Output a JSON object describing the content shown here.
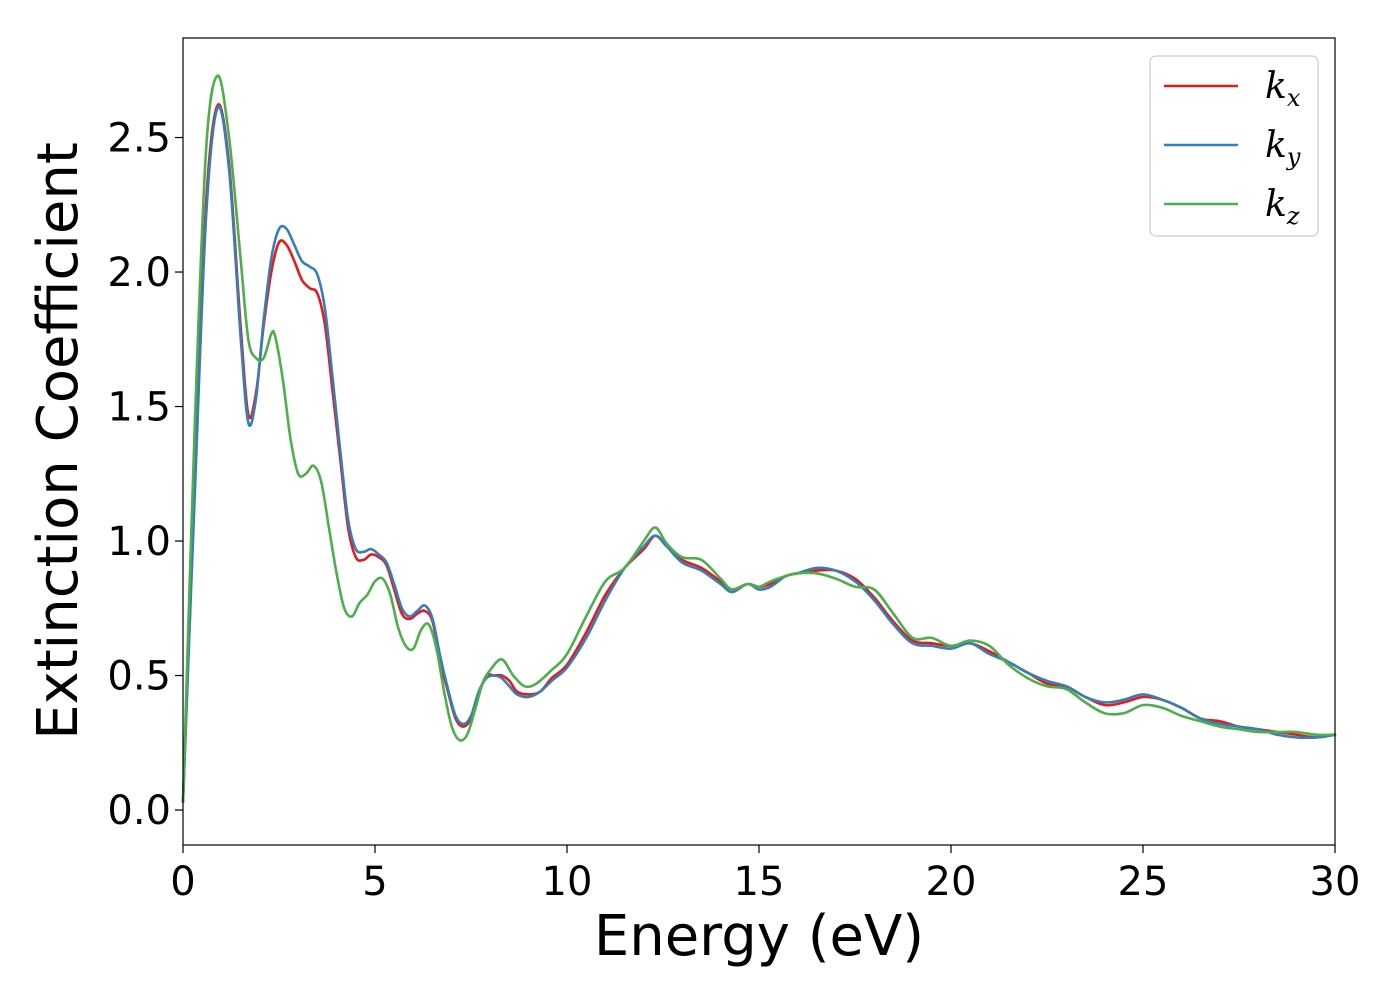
{
  "chart_data": {
    "type": "line",
    "xlabel": "Energy (eV)",
    "ylabel": "Extinction Coefficient",
    "xlim": [
      0,
      30
    ],
    "ylim": [
      -0.13,
      2.87
    ],
    "xticks": [
      0,
      5,
      10,
      15,
      20,
      25,
      30
    ],
    "xtick_labels": [
      "0",
      "5",
      "10",
      "15",
      "20",
      "25",
      "30"
    ],
    "yticks": [
      0.0,
      0.5,
      1.0,
      1.5,
      2.0,
      2.5
    ],
    "ytick_labels": [
      "0.0",
      "0.5",
      "1.0",
      "1.5",
      "2.0",
      "2.5"
    ],
    "grid": false,
    "legend_position": "top-right",
    "series": [
      {
        "name": "k_x",
        "label_main": "k",
        "label_sub": "x",
        "color": "#e41a1c",
        "points": [
          [
            0,
            0.03
          ],
          [
            0.3,
            1.2
          ],
          [
            0.6,
            2.25
          ],
          [
            0.9,
            2.62
          ],
          [
            1.2,
            2.4
          ],
          [
            1.5,
            1.8
          ],
          [
            1.7,
            1.47
          ],
          [
            1.9,
            1.55
          ],
          [
            2.1,
            1.8
          ],
          [
            2.3,
            2.0
          ],
          [
            2.5,
            2.11
          ],
          [
            2.7,
            2.1
          ],
          [
            2.9,
            2.04
          ],
          [
            3.1,
            1.97
          ],
          [
            3.3,
            1.94
          ],
          [
            3.5,
            1.92
          ],
          [
            3.7,
            1.8
          ],
          [
            3.9,
            1.55
          ],
          [
            4.1,
            1.3
          ],
          [
            4.3,
            1.05
          ],
          [
            4.5,
            0.94
          ],
          [
            4.7,
            0.93
          ],
          [
            4.9,
            0.95
          ],
          [
            5.1,
            0.94
          ],
          [
            5.3,
            0.91
          ],
          [
            5.5,
            0.82
          ],
          [
            5.7,
            0.73
          ],
          [
            5.9,
            0.71
          ],
          [
            6.1,
            0.73
          ],
          [
            6.3,
            0.74
          ],
          [
            6.5,
            0.7
          ],
          [
            6.7,
            0.55
          ],
          [
            6.9,
            0.44
          ],
          [
            7.1,
            0.34
          ],
          [
            7.3,
            0.31
          ],
          [
            7.5,
            0.34
          ],
          [
            7.7,
            0.43
          ],
          [
            7.9,
            0.5
          ],
          [
            8.1,
            0.5
          ],
          [
            8.3,
            0.5
          ],
          [
            8.5,
            0.48
          ],
          [
            8.7,
            0.44
          ],
          [
            9.0,
            0.43
          ],
          [
            9.3,
            0.44
          ],
          [
            9.6,
            0.49
          ],
          [
            10.0,
            0.54
          ],
          [
            10.5,
            0.66
          ],
          [
            11.0,
            0.8
          ],
          [
            11.5,
            0.9
          ],
          [
            12.0,
            0.97
          ],
          [
            12.3,
            1.02
          ],
          [
            12.6,
            0.98
          ],
          [
            13.0,
            0.93
          ],
          [
            13.5,
            0.9
          ],
          [
            14.0,
            0.85
          ],
          [
            14.3,
            0.82
          ],
          [
            14.7,
            0.84
          ],
          [
            15.0,
            0.83
          ],
          [
            15.3,
            0.84
          ],
          [
            15.7,
            0.87
          ],
          [
            16.0,
            0.88
          ],
          [
            16.5,
            0.89
          ],
          [
            17.0,
            0.89
          ],
          [
            17.5,
            0.86
          ],
          [
            18.0,
            0.79
          ],
          [
            18.5,
            0.7
          ],
          [
            19.0,
            0.63
          ],
          [
            19.5,
            0.62
          ],
          [
            20.0,
            0.61
          ],
          [
            20.5,
            0.62
          ],
          [
            21.0,
            0.59
          ],
          [
            21.5,
            0.55
          ],
          [
            22.0,
            0.51
          ],
          [
            22.5,
            0.47
          ],
          [
            23.0,
            0.46
          ],
          [
            23.5,
            0.42
          ],
          [
            24.0,
            0.39
          ],
          [
            24.5,
            0.4
          ],
          [
            25.0,
            0.42
          ],
          [
            25.5,
            0.41
          ],
          [
            26.0,
            0.38
          ],
          [
            26.5,
            0.34
          ],
          [
            27.0,
            0.33
          ],
          [
            27.5,
            0.31
          ],
          [
            28.0,
            0.3
          ],
          [
            28.5,
            0.29
          ],
          [
            29.0,
            0.28
          ],
          [
            29.5,
            0.27
          ],
          [
            30.0,
            0.28
          ]
        ]
      },
      {
        "name": "k_y",
        "label_main": "k",
        "label_sub": "y",
        "color": "#377eb8",
        "points": [
          [
            0,
            0.03
          ],
          [
            0.3,
            1.15
          ],
          [
            0.6,
            2.2
          ],
          [
            0.9,
            2.61
          ],
          [
            1.2,
            2.38
          ],
          [
            1.5,
            1.76
          ],
          [
            1.7,
            1.44
          ],
          [
            1.9,
            1.53
          ],
          [
            2.1,
            1.82
          ],
          [
            2.3,
            2.05
          ],
          [
            2.5,
            2.16
          ],
          [
            2.7,
            2.16
          ],
          [
            2.9,
            2.1
          ],
          [
            3.1,
            2.04
          ],
          [
            3.3,
            2.02
          ],
          [
            3.5,
            1.99
          ],
          [
            3.7,
            1.86
          ],
          [
            3.9,
            1.6
          ],
          [
            4.1,
            1.33
          ],
          [
            4.3,
            1.08
          ],
          [
            4.5,
            0.97
          ],
          [
            4.7,
            0.96
          ],
          [
            4.9,
            0.97
          ],
          [
            5.1,
            0.95
          ],
          [
            5.3,
            0.92
          ],
          [
            5.5,
            0.84
          ],
          [
            5.7,
            0.75
          ],
          [
            5.9,
            0.72
          ],
          [
            6.1,
            0.74
          ],
          [
            6.3,
            0.76
          ],
          [
            6.5,
            0.71
          ],
          [
            6.7,
            0.57
          ],
          [
            6.9,
            0.45
          ],
          [
            7.1,
            0.35
          ],
          [
            7.3,
            0.32
          ],
          [
            7.5,
            0.35
          ],
          [
            7.7,
            0.44
          ],
          [
            7.9,
            0.49
          ],
          [
            8.1,
            0.5
          ],
          [
            8.3,
            0.49
          ],
          [
            8.5,
            0.46
          ],
          [
            8.7,
            0.43
          ],
          [
            9.0,
            0.42
          ],
          [
            9.3,
            0.44
          ],
          [
            9.6,
            0.48
          ],
          [
            10.0,
            0.53
          ],
          [
            10.5,
            0.64
          ],
          [
            11.0,
            0.78
          ],
          [
            11.5,
            0.9
          ],
          [
            12.0,
            0.98
          ],
          [
            12.3,
            1.02
          ],
          [
            12.6,
            0.98
          ],
          [
            13.0,
            0.92
          ],
          [
            13.5,
            0.89
          ],
          [
            14.0,
            0.84
          ],
          [
            14.3,
            0.81
          ],
          [
            14.7,
            0.84
          ],
          [
            15.0,
            0.82
          ],
          [
            15.3,
            0.83
          ],
          [
            15.7,
            0.87
          ],
          [
            16.0,
            0.88
          ],
          [
            16.5,
            0.9
          ],
          [
            17.0,
            0.89
          ],
          [
            17.5,
            0.85
          ],
          [
            18.0,
            0.78
          ],
          [
            18.5,
            0.69
          ],
          [
            19.0,
            0.62
          ],
          [
            19.5,
            0.61
          ],
          [
            20.0,
            0.6
          ],
          [
            20.5,
            0.62
          ],
          [
            21.0,
            0.58
          ],
          [
            21.5,
            0.55
          ],
          [
            22.0,
            0.51
          ],
          [
            22.5,
            0.48
          ],
          [
            23.0,
            0.46
          ],
          [
            23.5,
            0.42
          ],
          [
            24.0,
            0.4
          ],
          [
            24.5,
            0.41
          ],
          [
            25.0,
            0.43
          ],
          [
            25.5,
            0.41
          ],
          [
            26.0,
            0.38
          ],
          [
            26.5,
            0.34
          ],
          [
            27.0,
            0.32
          ],
          [
            27.5,
            0.31
          ],
          [
            28.0,
            0.3
          ],
          [
            28.5,
            0.28
          ],
          [
            29.0,
            0.27
          ],
          [
            29.5,
            0.27
          ],
          [
            30.0,
            0.28
          ]
        ]
      },
      {
        "name": "k_z",
        "label_main": "k",
        "label_sub": "z",
        "color": "#4daf4a",
        "points": [
          [
            0,
            0.03
          ],
          [
            0.3,
            1.4
          ],
          [
            0.6,
            2.45
          ],
          [
            0.9,
            2.73
          ],
          [
            1.2,
            2.5
          ],
          [
            1.5,
            2.05
          ],
          [
            1.7,
            1.75
          ],
          [
            1.9,
            1.68
          ],
          [
            2.1,
            1.68
          ],
          [
            2.3,
            1.77
          ],
          [
            2.4,
            1.76
          ],
          [
            2.6,
            1.6
          ],
          [
            2.8,
            1.38
          ],
          [
            3.0,
            1.25
          ],
          [
            3.2,
            1.25
          ],
          [
            3.4,
            1.28
          ],
          [
            3.6,
            1.22
          ],
          [
            3.8,
            1.05
          ],
          [
            4.0,
            0.88
          ],
          [
            4.2,
            0.75
          ],
          [
            4.4,
            0.72
          ],
          [
            4.6,
            0.77
          ],
          [
            4.8,
            0.8
          ],
          [
            5.0,
            0.85
          ],
          [
            5.2,
            0.86
          ],
          [
            5.4,
            0.8
          ],
          [
            5.6,
            0.68
          ],
          [
            5.8,
            0.61
          ],
          [
            6.0,
            0.6
          ],
          [
            6.2,
            0.67
          ],
          [
            6.4,
            0.69
          ],
          [
            6.6,
            0.6
          ],
          [
            6.8,
            0.44
          ],
          [
            7.0,
            0.31
          ],
          [
            7.2,
            0.26
          ],
          [
            7.4,
            0.28
          ],
          [
            7.6,
            0.37
          ],
          [
            7.8,
            0.47
          ],
          [
            8.0,
            0.52
          ],
          [
            8.3,
            0.56
          ],
          [
            8.6,
            0.5
          ],
          [
            8.9,
            0.46
          ],
          [
            9.2,
            0.47
          ],
          [
            9.6,
            0.52
          ],
          [
            10.0,
            0.58
          ],
          [
            10.5,
            0.72
          ],
          [
            11.0,
            0.85
          ],
          [
            11.5,
            0.9
          ],
          [
            12.0,
            1.0
          ],
          [
            12.3,
            1.05
          ],
          [
            12.6,
            0.99
          ],
          [
            13.0,
            0.94
          ],
          [
            13.5,
            0.93
          ],
          [
            14.0,
            0.86
          ],
          [
            14.3,
            0.82
          ],
          [
            14.7,
            0.84
          ],
          [
            15.0,
            0.83
          ],
          [
            15.3,
            0.85
          ],
          [
            15.7,
            0.87
          ],
          [
            16.0,
            0.88
          ],
          [
            16.5,
            0.88
          ],
          [
            17.0,
            0.86
          ],
          [
            17.5,
            0.83
          ],
          [
            18.0,
            0.82
          ],
          [
            18.5,
            0.73
          ],
          [
            19.0,
            0.64
          ],
          [
            19.5,
            0.64
          ],
          [
            20.0,
            0.61
          ],
          [
            20.5,
            0.63
          ],
          [
            21.0,
            0.61
          ],
          [
            21.5,
            0.54
          ],
          [
            22.0,
            0.49
          ],
          [
            22.5,
            0.46
          ],
          [
            23.0,
            0.45
          ],
          [
            23.5,
            0.4
          ],
          [
            24.0,
            0.36
          ],
          [
            24.5,
            0.36
          ],
          [
            25.0,
            0.39
          ],
          [
            25.5,
            0.38
          ],
          [
            26.0,
            0.35
          ],
          [
            26.5,
            0.33
          ],
          [
            27.0,
            0.31
          ],
          [
            27.5,
            0.3
          ],
          [
            28.0,
            0.29
          ],
          [
            28.5,
            0.29
          ],
          [
            29.0,
            0.29
          ],
          [
            29.5,
            0.28
          ],
          [
            30.0,
            0.28
          ]
        ]
      }
    ]
  }
}
